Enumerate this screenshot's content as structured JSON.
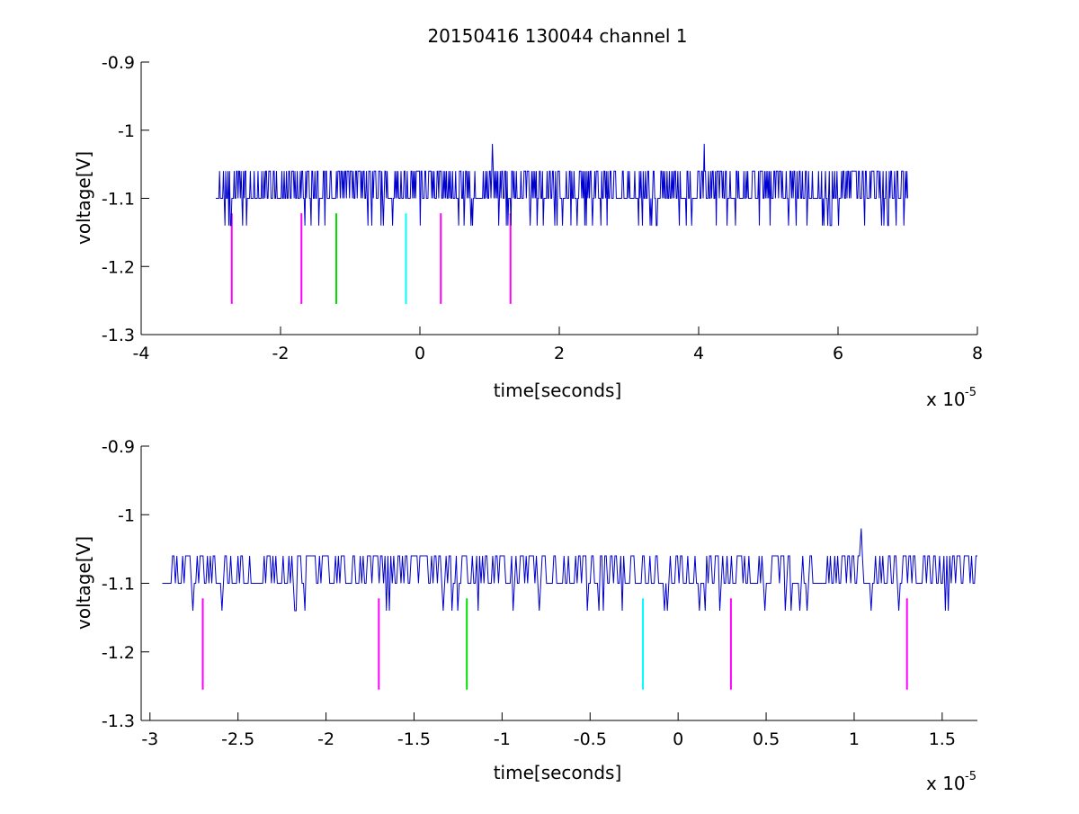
{
  "figure": {
    "title": "20150416 130044 channel 1"
  },
  "colors": {
    "signal": "#0000cc",
    "magenta_marker": "#ff00ff",
    "green_marker": "#00e000",
    "cyan_marker": "#00ffff",
    "axes": "#000000",
    "background": "#ffffff"
  },
  "chart_data": [
    {
      "type": "line",
      "title": "20150416 130044 channel 1",
      "xlabel": "time[seconds]",
      "ylabel": "voltage[V]",
      "x_multiplier": "x 10",
      "x_exponent": "-5",
      "xlim": [
        -4e-05,
        8e-05
      ],
      "ylim": [
        -1.3,
        -0.9
      ],
      "xtick_values": [
        -4e-05,
        -2e-05,
        0,
        2e-05,
        4e-05,
        6e-05,
        8e-05
      ],
      "xtick_labels": [
        "-4",
        "-2",
        "0",
        "2",
        "4",
        "6",
        "8"
      ],
      "ytick_values": [
        -1.3,
        -1.2,
        -1.1,
        -1.0,
        -0.9
      ],
      "ytick_labels": [
        "-1.3",
        "-1.2",
        "-1.1",
        "-1",
        "-0.9"
      ],
      "grid": false,
      "signal": {
        "x_start": -2.93e-05,
        "x_end": 7e-05,
        "baseline": -1.1,
        "levels": [
          -1.06,
          -1.1,
          -1.14
        ],
        "spikes": [
          {
            "x": 1.04e-05,
            "y": -1.02
          },
          {
            "x": 4.08e-05,
            "y": -1.02
          }
        ]
      },
      "markers": [
        {
          "x": -2.7e-05,
          "y_top": -1.122,
          "y_bottom": -1.255,
          "color": "magenta"
        },
        {
          "x": -1.7e-05,
          "y_top": -1.122,
          "y_bottom": -1.255,
          "color": "magenta"
        },
        {
          "x": -1.2e-05,
          "y_top": -1.122,
          "y_bottom": -1.255,
          "color": "green"
        },
        {
          "x": -2e-06,
          "y_top": -1.122,
          "y_bottom": -1.255,
          "color": "cyan"
        },
        {
          "x": 3e-06,
          "y_top": -1.122,
          "y_bottom": -1.255,
          "color": "magenta"
        },
        {
          "x": 1.3e-05,
          "y_top": -1.122,
          "y_bottom": -1.255,
          "color": "magenta"
        }
      ]
    },
    {
      "type": "line",
      "title": "",
      "xlabel": "time[seconds]",
      "ylabel": "voltage[V]",
      "x_multiplier": "x 10",
      "x_exponent": "-5",
      "xlim": [
        -3.05e-05,
        1.7e-05
      ],
      "ylim": [
        -1.3,
        -0.9
      ],
      "xtick_values": [
        -3e-05,
        -2.5e-05,
        -2e-05,
        -1.5e-05,
        -1e-05,
        -5e-06,
        0,
        5e-06,
        1e-05,
        1.5e-05
      ],
      "xtick_labels": [
        "-3",
        "-2.5",
        "-2",
        "-1.5",
        "-1",
        "-0.5",
        "0",
        "0.5",
        "1",
        "1.5"
      ],
      "ytick_values": [
        -1.3,
        -1.2,
        -1.1,
        -1.0,
        -0.9
      ],
      "ytick_labels": [
        "-1.3",
        "-1.2",
        "-1.1",
        "-1",
        "-0.9"
      ],
      "grid": false,
      "signal": {
        "x_start": -2.93e-05,
        "x_end": 1.7e-05,
        "baseline": -1.1,
        "levels": [
          -1.06,
          -1.1,
          -1.14
        ],
        "spikes": [
          {
            "x": 1.04e-05,
            "y": -1.02
          }
        ]
      },
      "markers": [
        {
          "x": -2.7e-05,
          "y_top": -1.122,
          "y_bottom": -1.255,
          "color": "magenta"
        },
        {
          "x": -1.7e-05,
          "y_top": -1.122,
          "y_bottom": -1.255,
          "color": "magenta"
        },
        {
          "x": -1.2e-05,
          "y_top": -1.122,
          "y_bottom": -1.255,
          "color": "green"
        },
        {
          "x": -2e-06,
          "y_top": -1.122,
          "y_bottom": -1.255,
          "color": "cyan"
        },
        {
          "x": 3e-06,
          "y_top": -1.122,
          "y_bottom": -1.255,
          "color": "magenta"
        },
        {
          "x": 1.3e-05,
          "y_top": -1.122,
          "y_bottom": -1.255,
          "color": "magenta"
        }
      ]
    }
  ]
}
